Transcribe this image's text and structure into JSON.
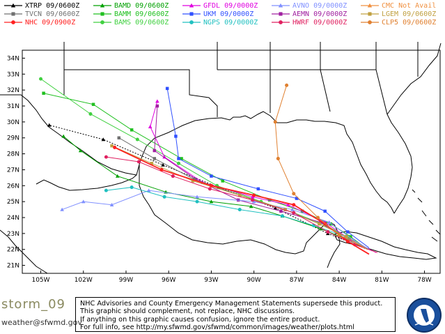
{
  "legend": [
    {
      "label": "XTRP",
      "time": "09/0600Z",
      "color": "#000000",
      "marker": "triangle"
    },
    {
      "label": "BAMD",
      "time": "09/0600Z",
      "color": "#00a000",
      "marker": "triangle"
    },
    {
      "label": "GFDL",
      "time": "09/0000Z",
      "color": "#e000e0",
      "marker": "triangle"
    },
    {
      "label": "AVNO",
      "time": "09/0000Z",
      "color": "#8090ff",
      "marker": "triangle"
    },
    {
      "label": "CMC",
      "time": "Not Avail",
      "color": "#f09040",
      "marker": "triangle"
    },
    {
      "label": "TVCN",
      "time": "09/0600Z",
      "color": "#707070",
      "marker": "square"
    },
    {
      "label": "BAMM",
      "time": "09/0600Z",
      "color": "#20c020",
      "marker": "square"
    },
    {
      "label": "UKM",
      "time": "09/0000Z",
      "color": "#3050ff",
      "marker": "square"
    },
    {
      "label": "AEMN",
      "time": "09/0000Z",
      "color": "#a020a0",
      "marker": "square"
    },
    {
      "label": "LGEM",
      "time": "09/0600Z",
      "color": "#c0a040",
      "marker": "square"
    },
    {
      "label": "NHC",
      "time": "09/0900Z",
      "color": "#ff2020",
      "marker": "circle"
    },
    {
      "label": "BAMS",
      "time": "09/0600Z",
      "color": "#40d040",
      "marker": "circle"
    },
    {
      "label": "NGPS",
      "time": "09/0000Z",
      "color": "#20c0c0",
      "marker": "circle"
    },
    {
      "label": "HWRF",
      "time": "09/0000Z",
      "color": "#e02060",
      "marker": "circle"
    },
    {
      "label": "CLP5",
      "time": "09/0600Z",
      "color": "#e08030",
      "marker": "circle"
    }
  ],
  "map": {
    "lat_labels": [
      "34N",
      "33N",
      "32N",
      "31N",
      "30N",
      "29N",
      "28N",
      "27N",
      "26N",
      "25N",
      "24N",
      "23N",
      "22N",
      "21N"
    ],
    "lon_labels": [
      "105W",
      "102W",
      "99W",
      "96W",
      "93W",
      "90W",
      "87W",
      "84W",
      "81W",
      "78W"
    ],
    "lat_range": [
      20.5,
      34.5
    ],
    "lon_range": [
      106.3,
      76.9
    ]
  },
  "tracks": [
    {
      "model": "XTRP",
      "color": "#000000",
      "marker": "triangle",
      "dashed": true,
      "points": [
        [
          22.0,
          82.0
        ],
        [
          23.0,
          84.8
        ],
        [
          24.6,
          88.5
        ],
        [
          25.9,
          92.5
        ],
        [
          27.3,
          96.4
        ],
        [
          28.9,
          100.6
        ],
        [
          29.8,
          104.4
        ]
      ]
    },
    {
      "model": "BAMD",
      "color": "#00a000",
      "marker": "triangle",
      "points": [
        [
          22.0,
          82.0
        ],
        [
          22.6,
          83.4
        ],
        [
          23.3,
          85.3
        ],
        [
          24.1,
          88.0
        ],
        [
          24.7,
          90.2
        ],
        [
          25.0,
          93.0
        ],
        [
          25.6,
          96.2
        ],
        [
          26.6,
          99.6
        ],
        [
          28.2,
          102.2
        ],
        [
          29.1,
          103.4
        ]
      ]
    },
    {
      "model": "BAMM",
      "color": "#20c020",
      "marker": "square",
      "points": [
        [
          22.0,
          82.0
        ],
        [
          22.8,
          83.2
        ],
        [
          23.6,
          84.6
        ],
        [
          24.4,
          86.6
        ],
        [
          25.1,
          88.9
        ],
        [
          26.3,
          92.2
        ],
        [
          27.7,
          95.1
        ],
        [
          29.5,
          98.6
        ],
        [
          31.1,
          101.3
        ],
        [
          31.8,
          104.8
        ]
      ]
    },
    {
      "model": "BAMS",
      "color": "#40d040",
      "marker": "circle",
      "points": [
        [
          22.0,
          82.0
        ],
        [
          22.7,
          83.3
        ],
        [
          23.5,
          84.9
        ],
        [
          24.3,
          87.2
        ],
        [
          25.0,
          89.5
        ],
        [
          26.0,
          92.6
        ],
        [
          27.4,
          95.3
        ],
        [
          28.9,
          98.2
        ],
        [
          30.5,
          101.5
        ],
        [
          32.7,
          105.0
        ]
      ]
    },
    {
      "model": "GFDL",
      "color": "#e000e0",
      "marker": "triangle",
      "points": [
        [
          21.8,
          81.4
        ],
        [
          22.6,
          83.2
        ],
        [
          23.7,
          85.0
        ],
        [
          24.8,
          87.6
        ],
        [
          25.3,
          90.1
        ],
        [
          26.2,
          93.6
        ],
        [
          27.8,
          96.3
        ],
        [
          29.7,
          97.3
        ],
        [
          31.3,
          96.8
        ]
      ]
    },
    {
      "model": "AEMN",
      "color": "#a020a0",
      "marker": "square",
      "points": [
        [
          22.0,
          82.0
        ],
        [
          22.7,
          83.6
        ],
        [
          23.7,
          85.3
        ],
        [
          24.4,
          88.1
        ],
        [
          25.1,
          91.1
        ],
        [
          26.4,
          94.1
        ],
        [
          28.2,
          97.0
        ],
        [
          31.0,
          96.8
        ]
      ]
    },
    {
      "model": "UKM",
      "color": "#3050ff",
      "marker": "square",
      "points": [
        [
          22.1,
          81.9
        ],
        [
          23.1,
          83.4
        ],
        [
          24.4,
          85.0
        ],
        [
          25.2,
          87.0
        ],
        [
          25.8,
          89.7
        ],
        [
          26.6,
          93.0
        ],
        [
          27.7,
          95.3
        ],
        [
          29.1,
          95.5
        ],
        [
          32.1,
          96.1
        ]
      ]
    },
    {
      "model": "AVNO",
      "color": "#8090ff",
      "marker": "triangle",
      "points": [
        [
          21.9,
          81.7
        ],
        [
          22.6,
          83.0
        ],
        [
          23.7,
          84.7
        ],
        [
          24.5,
          87.3
        ],
        [
          25.0,
          90.0
        ],
        [
          25.3,
          94.0
        ],
        [
          25.7,
          97.4
        ],
        [
          24.8,
          100.0
        ],
        [
          25.0,
          102.0
        ],
        [
          24.5,
          103.5
        ]
      ]
    },
    {
      "model": "NGPS",
      "color": "#20c0c0",
      "marker": "circle",
      "points": [
        [
          22.0,
          82.0
        ],
        [
          22.8,
          83.5
        ],
        [
          23.5,
          85.8
        ],
        [
          24.1,
          88.0
        ],
        [
          24.5,
          91.0
        ],
        [
          25.0,
          94.0
        ],
        [
          25.3,
          96.3
        ],
        [
          25.9,
          98.6
        ],
        [
          25.7,
          100.4
        ]
      ]
    },
    {
      "model": "TVCN",
      "color": "#707070",
      "marker": "square",
      "points": [
        [
          22.0,
          82.0
        ],
        [
          22.8,
          83.5
        ],
        [
          23.6,
          85.4
        ],
        [
          24.5,
          87.8
        ],
        [
          25.4,
          91.0
        ],
        [
          26.4,
          94.2
        ],
        [
          27.7,
          97.0
        ],
        [
          29.0,
          99.5
        ]
      ]
    },
    {
      "model": "LGEM",
      "color": "#c0a040",
      "marker": "square",
      "points": [
        [
          22.0,
          82.0
        ],
        [
          22.8,
          83.5
        ],
        [
          23.6,
          85.4
        ],
        [
          24.5,
          87.8
        ],
        [
          25.4,
          91.0
        ],
        [
          26.3,
          94.3
        ],
        [
          27.4,
          97.2
        ],
        [
          28.5,
          100.0
        ]
      ]
    },
    {
      "model": "HWRF",
      "color": "#e02060",
      "marker": "circle",
      "points": [
        [
          21.8,
          81.3
        ],
        [
          22.3,
          82.9
        ],
        [
          23.1,
          84.8
        ],
        [
          24.3,
          87.2
        ],
        [
          25.1,
          90.1
        ],
        [
          25.8,
          93.1
        ],
        [
          26.6,
          95.7
        ],
        [
          27.5,
          98.1
        ],
        [
          27.8,
          100.4
        ]
      ]
    },
    {
      "model": "NHC",
      "color": "#ff2020",
      "marker": "circle",
      "points": [
        [
          21.7,
          81.9
        ],
        [
          22.5,
          83.4
        ],
        [
          23.6,
          85.0
        ],
        [
          24.8,
          87.2
        ],
        [
          25.4,
          90.0
        ],
        [
          26.0,
          93.0
        ],
        [
          27.0,
          96.5
        ],
        [
          28.4,
          99.8
        ]
      ]
    },
    {
      "model": "CLP5",
      "color": "#e08030",
      "marker": "circle",
      "points": [
        [
          22.0,
          82.0
        ],
        [
          22.9,
          84.0
        ],
        [
          24.0,
          85.5
        ],
        [
          25.5,
          87.2
        ],
        [
          27.7,
          88.3
        ],
        [
          30.0,
          88.5
        ],
        [
          32.3,
          87.7
        ]
      ]
    }
  ],
  "footer": {
    "storm_id": "storm_09",
    "email": "weather@sfwmd.gov",
    "disclaimer": [
      "NHC Advisories and County Emergency Management Statements supersede this product.",
      "This graphic should complement, not replace, NHC discussions.",
      "If anything on this graphic causes confusion, ignore the entire product.",
      "For full info, see  http://my.sfwmd.gov/sfwmd/common/images/weather/plots.html"
    ],
    "logo_text": "SOUTH FLORIDA WATER MANAGEMENT DISTRICT"
  }
}
